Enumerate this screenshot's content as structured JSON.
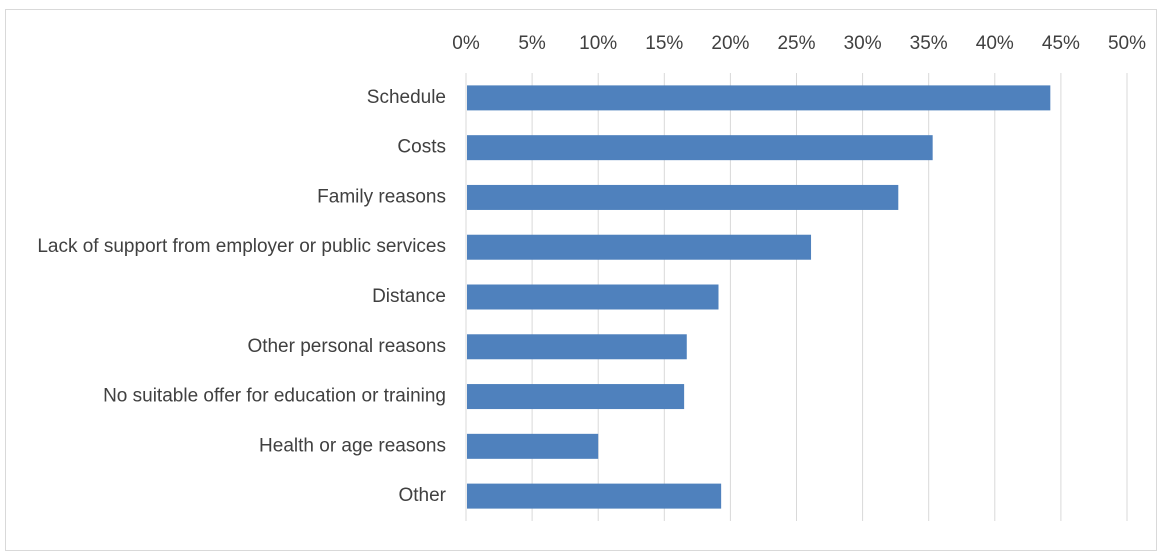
{
  "chart_data": {
    "type": "bar",
    "orientation": "horizontal",
    "title": "",
    "xlabel": "",
    "ylabel": "",
    "xlim": [
      0,
      50
    ],
    "x_ticks": [
      0,
      5,
      10,
      15,
      20,
      25,
      30,
      35,
      40,
      45,
      50
    ],
    "tick_suffix": "%",
    "grid": true,
    "legend": "none",
    "bar_color": "#4f81bd",
    "grid_color": "#d9d9d9",
    "categories": [
      "Schedule",
      "Costs",
      "Family reasons",
      "Lack of support from employer or public services",
      "Distance",
      "Other personal reasons",
      "No suitable offer for education or training",
      "Health or age reasons",
      "Other"
    ],
    "values": [
      44.2,
      35.3,
      32.7,
      26.1,
      19.1,
      16.7,
      16.5,
      10.0,
      19.3
    ]
  }
}
